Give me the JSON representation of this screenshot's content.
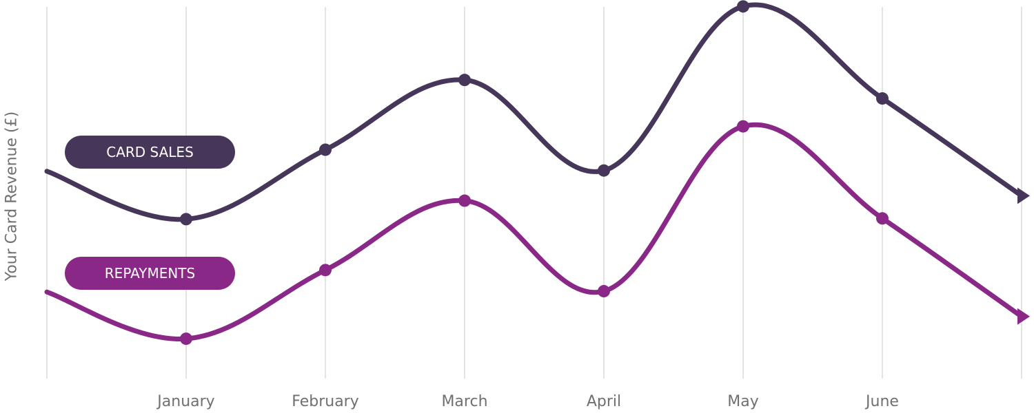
{
  "chart_data": {
    "type": "line",
    "ylabel": "Your Card Revenue (£)",
    "categories": [
      "January",
      "February",
      "March",
      "April",
      "May",
      "June"
    ],
    "grid": "vertical",
    "legend": "left",
    "series": [
      {
        "name": "CARD SALES",
        "color": "#46365a",
        "start": 0.546,
        "values": [
          0.419,
          0.603,
          0.788,
          0.548,
          0.983,
          0.739
        ],
        "end": 0.481
      },
      {
        "name": "REPAYMENTS",
        "color": "#8a2887",
        "start": 0.226,
        "values": [
          0.102,
          0.284,
          0.468,
          0.228,
          0.665,
          0.421
        ],
        "end": 0.161
      }
    ]
  }
}
